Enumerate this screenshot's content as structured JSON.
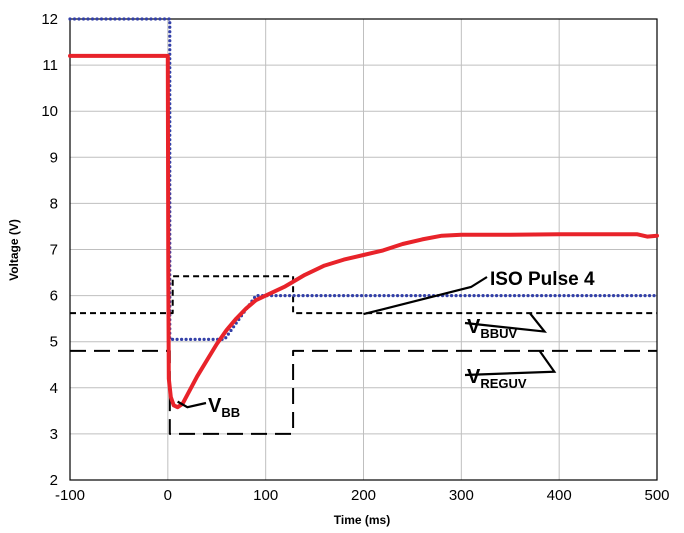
{
  "chart_data": {
    "type": "line",
    "title": "",
    "xlabel": "Time (ms)",
    "ylabel": "Voltage (V)",
    "xlim": [
      -100,
      500
    ],
    "ylim": [
      2,
      12
    ],
    "x_ticks": [
      -100,
      0,
      100,
      200,
      300,
      400,
      500
    ],
    "y_ticks": [
      2,
      3,
      4,
      5,
      6,
      7,
      8,
      9,
      10,
      11,
      12
    ],
    "grid": true,
    "series": [
      {
        "name": "",
        "style": "solid",
        "color": "#e8232a",
        "x": [
          -100,
          0,
          0.5,
          1,
          3,
          6,
          10,
          15,
          20,
          30,
          40,
          50,
          60,
          70,
          80,
          90,
          100,
          120,
          140,
          160,
          180,
          200,
          220,
          240,
          260,
          280,
          300,
          350,
          400,
          450,
          480,
          490,
          500
        ],
        "y": [
          11.2,
          11.2,
          6.5,
          4.2,
          3.8,
          3.62,
          3.58,
          3.65,
          3.85,
          4.25,
          4.6,
          4.95,
          5.25,
          5.5,
          5.72,
          5.9,
          6.0,
          6.2,
          6.45,
          6.65,
          6.78,
          6.88,
          6.98,
          7.12,
          7.22,
          7.3,
          7.32,
          7.32,
          7.33,
          7.33,
          7.33,
          7.28,
          7.3
        ]
      },
      {
        "name": "ISO Pulse 4",
        "style": "dotted",
        "color": "#3340a8",
        "x": [
          -100,
          0,
          2,
          2,
          58,
          90,
          500
        ],
        "y": [
          12,
          12,
          12,
          5.05,
          5.05,
          6.0,
          6.0
        ]
      },
      {
        "name": "VBBUV",
        "style": "short-dash",
        "color": "#000000",
        "x": [
          -100,
          5,
          5,
          128,
          128,
          500
        ],
        "y": [
          5.62,
          5.62,
          6.42,
          6.42,
          5.62,
          5.62
        ]
      },
      {
        "name": "VREGUV",
        "style": "long-dash",
        "color": "#000000",
        "x": [
          -100,
          2,
          2,
          128,
          128,
          500
        ],
        "y": [
          4.8,
          4.8,
          3.0,
          3.0,
          4.8,
          4.8
        ]
      }
    ],
    "annotations": [
      {
        "text": "ISO Pulse 4",
        "base": "ISO Pulse 4",
        "sub": ""
      },
      {
        "text": "VBBUV",
        "base": "V",
        "sub": "BBUV"
      },
      {
        "text": "VREGUV",
        "base": "V",
        "sub": "REGUV"
      },
      {
        "text": "VBB",
        "base": "V",
        "sub": "BB"
      }
    ]
  }
}
